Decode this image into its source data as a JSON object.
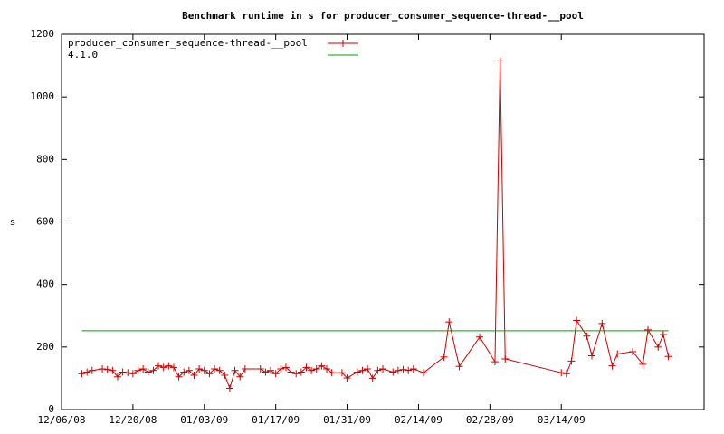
{
  "chart_data": {
    "type": "line",
    "title": "Benchmark runtime in s for producer_consumer_sequence-thread-__pool",
    "y_label": "s",
    "x": [
      "12/10/08",
      "12/11/08",
      "12/12/08",
      "12/14/08",
      "12/15/08",
      "12/16/08",
      "12/17/08",
      "12/18/08",
      "12/19/08",
      "12/20/08",
      "12/21/08",
      "12/22/08",
      "12/23/08",
      "12/24/08",
      "12/25/08",
      "12/26/08",
      "12/27/08",
      "12/28/08",
      "12/29/08",
      "12/30/08",
      "12/31/08",
      "01/01/09",
      "01/02/09",
      "01/03/09",
      "01/04/09",
      "01/05/09",
      "01/06/09",
      "01/07/09",
      "01/08/09",
      "01/09/09",
      "01/10/09",
      "01/11/09",
      "01/14/09",
      "01/15/09",
      "01/16/09",
      "01/17/09",
      "01/18/09",
      "01/19/09",
      "01/20/09",
      "01/21/09",
      "01/22/09",
      "01/23/09",
      "01/24/09",
      "01/25/09",
      "01/26/09",
      "01/27/09",
      "01/28/09",
      "01/30/09",
      "01/31/09",
      "02/02/09",
      "02/03/09",
      "02/04/09",
      "02/05/09",
      "02/06/09",
      "02/07/09",
      "02/09/09",
      "02/10/09",
      "02/11/09",
      "02/12/09",
      "02/13/09",
      "02/15/09",
      "02/19/09",
      "02/20/09",
      "02/22/09",
      "02/26/09",
      "03/01/09",
      "03/02/09",
      "03/03/09",
      "03/14/09",
      "03/15/09",
      "03/16/09",
      "03/17/09",
      "03/19/09",
      "03/20/09",
      "03/22/09",
      "03/24/09",
      "03/25/09",
      "03/28/09",
      "03/30/09",
      "03/31/09",
      "04/02/09",
      "04/03/09",
      "04/04/09"
    ],
    "series": [
      {
        "name": "producer_consumer_sequence-thread-__pool",
        "color": "#cc0000",
        "values": [
          115,
          120,
          125,
          130,
          128,
          125,
          105,
          120,
          118,
          115,
          125,
          130,
          120,
          125,
          140,
          135,
          140,
          135,
          105,
          120,
          125,
          110,
          130,
          125,
          115,
          130,
          125,
          110,
          68,
          125,
          105,
          130,
          130,
          120,
          125,
          115,
          130,
          135,
          120,
          115,
          120,
          135,
          125,
          130,
          140,
          130,
          118,
          118,
          101,
          120,
          125,
          130,
          100,
          125,
          130,
          120,
          125,
          128,
          125,
          130,
          118,
          168,
          280,
          138,
          232,
          153,
          1115,
          162,
          118,
          115,
          155,
          285,
          235,
          172,
          275,
          140,
          178,
          185,
          145,
          255,
          200,
          240,
          170
        ]
      },
      {
        "name": "4.1.0",
        "color": "#00a000",
        "x": [
          "12/10/08",
          "04/04/09"
        ],
        "values": [
          252,
          252
        ]
      }
    ],
    "xlim": [
      "12/06/08",
      "04/11/09"
    ],
    "xticks": [
      "12/06/08",
      "12/20/08",
      "01/03/09",
      "01/17/09",
      "01/31/09",
      "02/14/09",
      "02/28/09",
      "03/14/09"
    ],
    "ylim": [
      0,
      1200
    ],
    "yticks": [
      0,
      200,
      400,
      600,
      800,
      1000,
      1200
    ],
    "legend": "top-left"
  }
}
